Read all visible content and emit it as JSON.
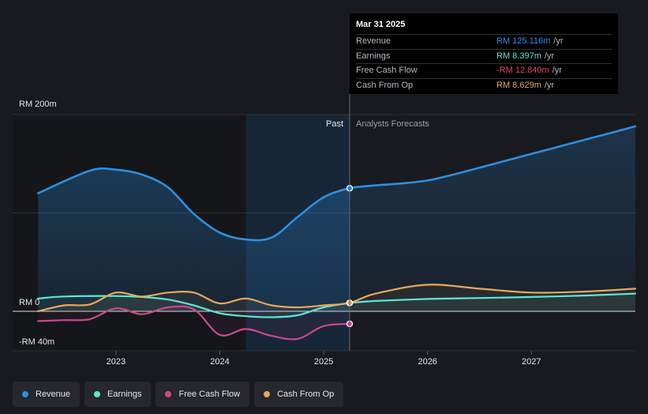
{
  "tooltip": {
    "date": "Mar 31 2025",
    "rows": [
      {
        "label": "Revenue",
        "value": "RM 125.116m",
        "unit": "/yr",
        "color": "#2e8fe0"
      },
      {
        "label": "Earnings",
        "value": "RM 8.397m",
        "unit": "/yr",
        "color": "#5ee6d4"
      },
      {
        "label": "Free Cash Flow",
        "value": "-RM 12.840m",
        "unit": "/yr",
        "color": "#e8475b"
      },
      {
        "label": "Cash From Op",
        "value": "RM 8.629m",
        "unit": "/yr",
        "color": "#e6a85c"
      }
    ]
  },
  "legend": [
    {
      "label": "Revenue",
      "color": "#2e8fe0"
    },
    {
      "label": "Earnings",
      "color": "#5ee6d4"
    },
    {
      "label": "Free Cash Flow",
      "color": "#c94a8a"
    },
    {
      "label": "Cash From Op",
      "color": "#e6a85c"
    }
  ],
  "chart_data": {
    "type": "line",
    "currency": "RM",
    "y_unit": "m",
    "ylim": [
      -40,
      200
    ],
    "xlim": [
      2022.2,
      2028.0
    ],
    "y_tick_labels": [
      {
        "value": 200,
        "label": "RM 200m"
      },
      {
        "value": 0,
        "label": "RM 0"
      },
      {
        "value": -40,
        "label": "-RM 40m"
      }
    ],
    "x_tick_labels": [
      "2023",
      "2024",
      "2025",
      "2026",
      "2027"
    ],
    "x_ticks": [
      2023,
      2024,
      2025,
      2026,
      2027
    ],
    "past_label": "Past",
    "forecast_label": "Analysts Forecasts",
    "past_end": 2025.25,
    "highlight_start": 2024.25,
    "series": [
      {
        "name": "Revenue",
        "color": "#2e8fe0",
        "x": [
          2022.25,
          2022.75,
          2023.0,
          2023.25,
          2023.5,
          2023.75,
          2024.0,
          2024.25,
          2024.5,
          2024.75,
          2025.0,
          2025.25,
          2025.5,
          2025.75,
          2026.0,
          2026.25,
          2026.5,
          2026.75,
          2027.0,
          2027.25,
          2027.5,
          2027.75,
          2028.0
        ],
        "values": [
          120,
          143,
          144,
          139,
          126,
          99,
          80,
          73,
          75,
          96,
          116,
          125.1,
          128,
          130,
          133,
          139,
          146,
          153,
          160,
          167,
          174,
          181,
          188
        ]
      },
      {
        "name": "Earnings",
        "color": "#5ee6d4",
        "x": [
          2022.25,
          2022.5,
          2023.0,
          2023.25,
          2023.5,
          2023.75,
          2024.0,
          2024.25,
          2024.5,
          2024.75,
          2025.0,
          2025.25,
          2025.5,
          2026.0,
          2026.5,
          2027.0,
          2027.5,
          2028.0
        ],
        "values": [
          13,
          15,
          15.5,
          14.5,
          12,
          6,
          -2,
          -5,
          -6,
          -4,
          4,
          8.4,
          10.5,
          12.5,
          13.5,
          14.5,
          16,
          18
        ]
      },
      {
        "name": "Free Cash Flow",
        "color": "#c94a8a",
        "x": [
          2022.25,
          2022.5,
          2022.75,
          2023.0,
          2023.25,
          2023.5,
          2023.75,
          2024.0,
          2024.25,
          2024.5,
          2024.75,
          2025.0,
          2025.25
        ],
        "values": [
          -10,
          -9,
          -8,
          3,
          -3,
          4,
          2,
          -24,
          -18,
          -25,
          -28,
          -15,
          -12.8
        ]
      },
      {
        "name": "Cash From Op",
        "color": "#e6a85c",
        "x": [
          2022.25,
          2022.5,
          2022.75,
          2023.0,
          2023.25,
          2023.5,
          2023.75,
          2024.0,
          2024.25,
          2024.5,
          2024.75,
          2025.0,
          2025.25,
          2025.5,
          2026.0,
          2026.5,
          2027.0,
          2027.5,
          2028.0
        ],
        "values": [
          0,
          6,
          7,
          19,
          15,
          19,
          19,
          8,
          13,
          6,
          4,
          6,
          8.6,
          18,
          27,
          23,
          19,
          20,
          23
        ]
      }
    ]
  }
}
